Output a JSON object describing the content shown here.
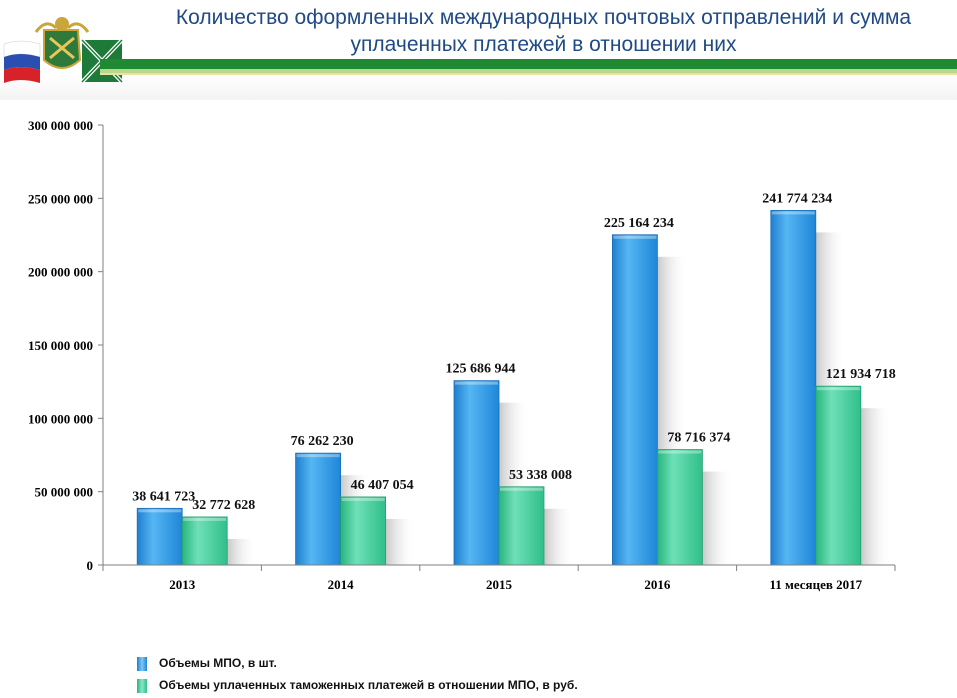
{
  "header": {
    "title_line1": "Количество оформленных международных почтовых отправлений и сумма",
    "title_line2": "уплаченных платежей в отношении них"
  },
  "colors": {
    "series1": "#2e9ae6",
    "series2": "#3fcf9e",
    "header_text": "#1f4a86",
    "stripe": "#1e8a32"
  },
  "chart_data": {
    "type": "bar",
    "categories": [
      "2013",
      "2014",
      "2015",
      "2016",
      "11 месяцев 2017"
    ],
    "series": [
      {
        "name": "Объемы МПО, в шт.",
        "values": [
          38641723,
          76262230,
          125686944,
          225164234,
          241774234
        ],
        "labels": [
          "38 641 723",
          "76 262 230",
          "125 686 944",
          "225 164 234",
          "241 774 234"
        ]
      },
      {
        "name": "Объемы уплаченных таможенных платежей в отношении МПО, в руб.",
        "values": [
          32772628,
          46407054,
          53338008,
          78716374,
          121934718
        ],
        "labels": [
          "32 772 628",
          "46 407 054",
          "53 338 008",
          "78 716 374",
          "121 934 718"
        ]
      }
    ],
    "ylim": [
      0,
      300000000
    ],
    "y_ticks": [
      {
        "value": 0,
        "label": "0"
      },
      {
        "value": 50000000,
        "label": "50 000 000"
      },
      {
        "value": 100000000,
        "label": "100 000 000"
      },
      {
        "value": 150000000,
        "label": "150 000 000"
      },
      {
        "value": 200000000,
        "label": "200 000 000"
      },
      {
        "value": 250000000,
        "label": "250 000 000"
      },
      {
        "value": 300000000,
        "label": "300 000 000"
      }
    ],
    "grid": false,
    "legend_position": "bottom-left"
  }
}
